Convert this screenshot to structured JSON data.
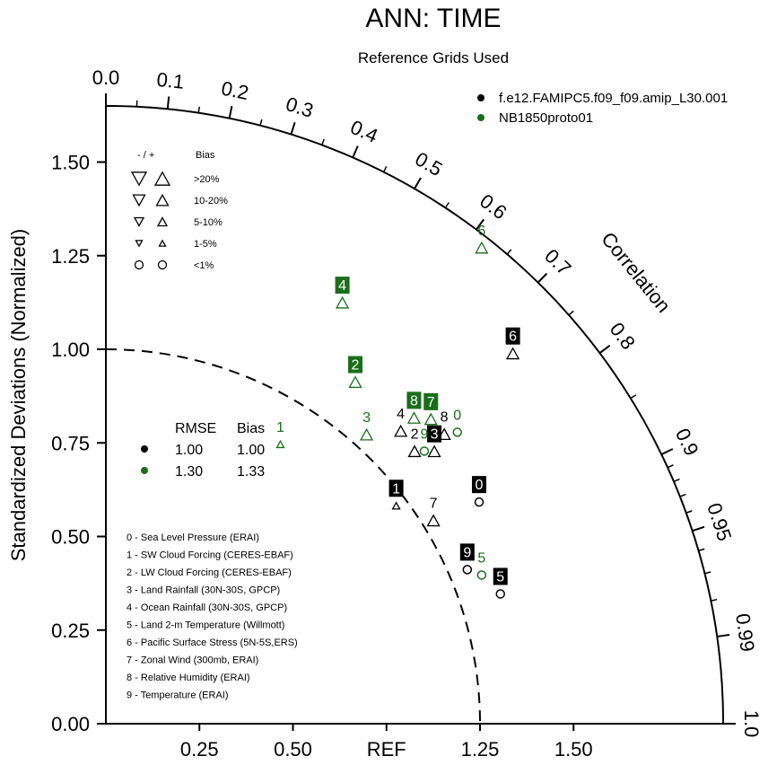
{
  "chart_data": {
    "type": "scatter",
    "subtype": "taylor-diagram",
    "title": "ANN: TIME",
    "subtitle": "Reference Grids Used",
    "ylabel": "Standardized Deviations (Normalized)",
    "x_ticks": [
      "0.25",
      "0.50",
      "REF",
      "1.25",
      "1.50"
    ],
    "y_ticks": [
      "0.00",
      "0.25",
      "0.50",
      "0.75",
      "1.00",
      "1.25",
      "1.50"
    ],
    "max_std": 1.65,
    "correlation_label": "Correlation",
    "correlation_ticks": [
      "0.0",
      "0.1",
      "0.2",
      "0.3",
      "0.4",
      "0.5",
      "0.6",
      "0.7",
      "0.8",
      "0.9",
      "0.95",
      "0.99",
      "1.0"
    ],
    "series": [
      {
        "name": "f.e12.FAMIPC5.f09_f09.amip_L30.001",
        "color": "#000000",
        "points": [
          {
            "id": "0",
            "std": 1.16,
            "corr": 0.86
          },
          {
            "id": "1",
            "std": 0.97,
            "corr": 0.8
          },
          {
            "id": "2",
            "std": 1.1,
            "corr": 0.75
          },
          {
            "id": "3",
            "std": 1.14,
            "corr": 0.77
          },
          {
            "id": "4",
            "std": 1.11,
            "corr": 0.71
          },
          {
            "id": "5",
            "std": 1.11,
            "corr": 0.95
          },
          {
            "id": "6",
            "std": 1.47,
            "corr": 0.74
          },
          {
            "id": "7",
            "std": 1.03,
            "corr": 0.85
          },
          {
            "id": "8",
            "std": 1.19,
            "corr": 0.76
          },
          {
            "id": "9",
            "std": 1.05,
            "corr": 0.92
          }
        ]
      },
      {
        "name": "NB1850proto01",
        "color": "#1a6e1a",
        "points": [
          {
            "id": "0",
            "std": 1.22,
            "corr": 0.77
          },
          {
            "id": "1",
            "std": 0.88,
            "corr": 0.53
          },
          {
            "id": "2",
            "std": 1.13,
            "corr": 0.59
          },
          {
            "id": "3",
            "std": 1.04,
            "corr": 0.67
          },
          {
            "id": "4",
            "std": 1.29,
            "corr": 0.49
          },
          {
            "id": "5",
            "std": 1.08,
            "corr": 0.93
          },
          {
            "id": "6",
            "std": 1.62,
            "corr": 0.62
          },
          {
            "id": "7",
            "std": 1.19,
            "corr": 0.73
          },
          {
            "id": "8",
            "std": 1.16,
            "corr": 0.71
          },
          {
            "id": "9",
            "std": 1.12,
            "corr": 0.76
          }
        ]
      }
    ],
    "rmse_bias_table": {
      "headers": [
        "RMSE",
        "Bias"
      ],
      "rows": [
        {
          "series": "f.e12.FAMIPC5.f09_f09.amip_L30.001",
          "rmse": "1.00",
          "bias": "1.00"
        },
        {
          "series": "NB1850proto01",
          "rmse": "1.30",
          "bias": "1.33"
        }
      ]
    },
    "bias_key": {
      "header_sign": "- / +",
      "header_bias": "Bias",
      "rows": [
        ">20%",
        "10-20%",
        "5-10%",
        "1-5%",
        "<1%"
      ]
    },
    "case_list": [
      "0 - Sea Level Pressure (ERAI)",
      "1 - SW Cloud Forcing (CERES-EBAF)",
      "2 - LW Cloud Forcing (CERES-EBAF)",
      "3 - Land Rainfall (30N-30S, GPCP)",
      "4 - Ocean Rainfall (30N-30S, GPCP)",
      "5 - Land 2-m Temperature (Willmott)",
      "6 - Pacific Surface Stress (5N-5S,ERS)",
      "7 - Zonal Wind (300mb, ERAI)",
      "8 - Relative Humidity (ERAI)",
      "9 - Temperature (ERAI)"
    ]
  }
}
